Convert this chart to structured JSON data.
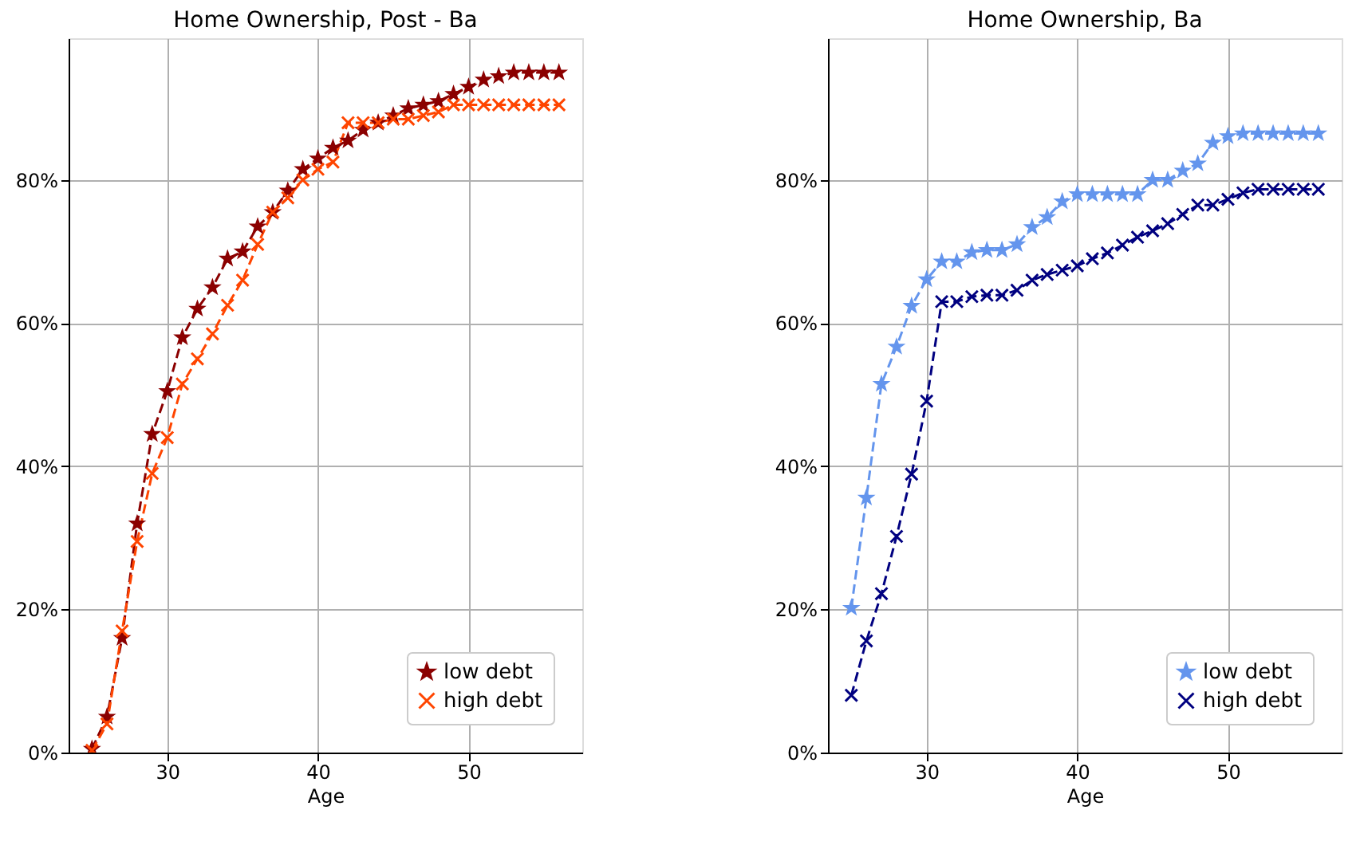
{
  "chart_data": [
    {
      "type": "line",
      "title": "Home Ownership, Post - Ba",
      "xlabel": "Age",
      "x": [
        25,
        26,
        27,
        28,
        29,
        30,
        31,
        32,
        33,
        34,
        35,
        36,
        37,
        38,
        39,
        40,
        41,
        42,
        43,
        44,
        45,
        46,
        47,
        48,
        49,
        50,
        51,
        52,
        53,
        54,
        55,
        56
      ],
      "series": [
        {
          "name": "low debt",
          "color": "#8b0000",
          "marker": "star",
          "values": [
            0.5,
            5,
            16,
            32,
            44.5,
            50.5,
            58,
            62,
            65,
            69,
            70,
            73.5,
            75.5,
            78.5,
            81.5,
            83,
            84.5,
            85.5,
            87,
            88,
            89,
            90,
            90.5,
            91,
            92,
            93,
            94,
            94.5,
            95,
            95,
            95,
            95
          ]
        },
        {
          "name": "high debt",
          "color": "#ff4500",
          "marker": "cross",
          "values": [
            0.3,
            4,
            17,
            29.5,
            39,
            44,
            51.5,
            55,
            58.5,
            62.5,
            66,
            71,
            75.5,
            77.5,
            80,
            81.5,
            82.5,
            88,
            88,
            88,
            88.5,
            88.5,
            89,
            89.5,
            90.5,
            90.5,
            90.5,
            90.5,
            90.5,
            90.5,
            90.5,
            90.5
          ]
        }
      ],
      "line_style": "dashed",
      "xlim": [
        23.45,
        57.55
      ],
      "ylim": [
        0,
        99.8
      ],
      "xticks": [
        30,
        40,
        50
      ],
      "yticks": [
        {
          "value": 0,
          "label": "0%"
        },
        {
          "value": 20,
          "label": "20%"
        },
        {
          "value": 40,
          "label": "40%"
        },
        {
          "value": 60,
          "label": "60%"
        },
        {
          "value": 80,
          "label": "80%"
        }
      ],
      "grid": true,
      "legend": "bottom right"
    },
    {
      "type": "line",
      "title": "Home Ownership, Ba",
      "xlabel": "Age",
      "x": [
        25,
        26,
        27,
        28,
        29,
        30,
        31,
        32,
        33,
        34,
        35,
        36,
        37,
        38,
        39,
        40,
        41,
        42,
        43,
        44,
        45,
        46,
        47,
        48,
        49,
        50,
        51,
        52,
        53,
        54,
        55,
        56
      ],
      "series": [
        {
          "name": "low debt",
          "color": "#6495ed",
          "marker": "star",
          "values": [
            20.2,
            35.6,
            51.5,
            56.7,
            62.4,
            66.1,
            68.6,
            68.6,
            69.9,
            70.2,
            70.2,
            71,
            73.4,
            74.8,
            77,
            78,
            78,
            78,
            78,
            78,
            80,
            80,
            81.3,
            82.3,
            85.2,
            86.1,
            86.5,
            86.5,
            86.5,
            86.5,
            86.5,
            86.5
          ]
        },
        {
          "name": "high debt",
          "color": "#000080",
          "marker": "cross",
          "values": [
            8,
            15.6,
            22.2,
            30.2,
            38.9,
            49.1,
            63,
            63,
            63.7,
            63.9,
            63.9,
            64.6,
            66,
            66.8,
            67.4,
            68,
            69,
            69.8,
            70.9,
            72,
            72.9,
            73.9,
            75.2,
            76.5,
            76.5,
            77.3,
            78.2,
            78.7,
            78.7,
            78.7,
            78.7,
            78.7
          ]
        }
      ],
      "line_style": "dashed",
      "xlim": [
        23.45,
        57.55
      ],
      "ylim": [
        0,
        99.8
      ],
      "xticks": [
        30,
        40,
        50
      ],
      "yticks": [
        {
          "value": 0,
          "label": "0%"
        },
        {
          "value": 20,
          "label": "20%"
        },
        {
          "value": 40,
          "label": "40%"
        },
        {
          "value": 60,
          "label": "60%"
        },
        {
          "value": 80,
          "label": "80%"
        }
      ],
      "grid": true,
      "legend": "bottom right"
    }
  ]
}
